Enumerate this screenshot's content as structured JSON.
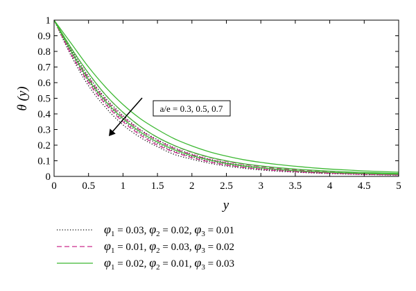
{
  "chart_data": {
    "type": "line",
    "xlabel": "y",
    "ylabel": "θ (y)",
    "xlim": [
      0,
      5
    ],
    "ylim": [
      0,
      1
    ],
    "x_ticks": [
      0,
      0.5,
      1,
      1.5,
      2,
      2.5,
      3,
      3.5,
      4,
      4.5,
      5
    ],
    "y_ticks": [
      0,
      0.1,
      0.2,
      0.3,
      0.4,
      0.5,
      0.6,
      0.7,
      0.8,
      0.9,
      1
    ],
    "x_tick_labels": [
      "0",
      "0.5",
      "1",
      "1.5",
      "2",
      "2.5",
      "3",
      "3.5",
      "4",
      "4.5",
      "5"
    ],
    "y_tick_labels": [
      "0",
      "0.1",
      "0.2",
      "0.3",
      "0.4",
      "0.5",
      "0.6",
      "0.7",
      "0.8",
      "0.9",
      "1"
    ],
    "grid": false,
    "annotation": {
      "text": "a/e = 0.3, 0.5, 0.7",
      "arrow_direction": "down-left"
    },
    "x": [
      0,
      0.25,
      0.5,
      0.75,
      1,
      1.25,
      1.5,
      1.75,
      2,
      2.25,
      2.5,
      2.75,
      3,
      3.25,
      3.5,
      3.75,
      4,
      4.25,
      4.5,
      4.75,
      5
    ],
    "series": [
      {
        "group": 0,
        "a_over_e": 0.3,
        "color": "#000000",
        "style": "dotted",
        "values": [
          1,
          0.77,
          0.58,
          0.44,
          0.33,
          0.25,
          0.19,
          0.14,
          0.11,
          0.085,
          0.066,
          0.052,
          0.041,
          0.033,
          0.027,
          0.022,
          0.018,
          0.015,
          0.012,
          0.01,
          0.008
        ]
      },
      {
        "group": 0,
        "a_over_e": 0.5,
        "color": "#000000",
        "style": "dotted",
        "values": [
          1,
          0.79,
          0.61,
          0.47,
          0.36,
          0.275,
          0.21,
          0.16,
          0.125,
          0.097,
          0.076,
          0.06,
          0.048,
          0.039,
          0.031,
          0.025,
          0.021,
          0.017,
          0.014,
          0.011,
          0.009
        ]
      },
      {
        "group": 0,
        "a_over_e": 0.7,
        "color": "#000000",
        "style": "dotted",
        "values": [
          1,
          0.81,
          0.64,
          0.5,
          0.39,
          0.3,
          0.235,
          0.182,
          0.142,
          0.111,
          0.088,
          0.07,
          0.056,
          0.045,
          0.036,
          0.029,
          0.024,
          0.02,
          0.016,
          0.013,
          0.011
        ]
      },
      {
        "group": 1,
        "a_over_e": 0.3,
        "color": "#cc2a8c",
        "style": "dashed",
        "values": [
          1,
          0.78,
          0.6,
          0.46,
          0.35,
          0.265,
          0.2,
          0.155,
          0.12,
          0.093,
          0.073,
          0.058,
          0.046,
          0.037,
          0.03,
          0.024,
          0.02,
          0.016,
          0.013,
          0.011,
          0.009
        ]
      },
      {
        "group": 1,
        "a_over_e": 0.5,
        "color": "#cc2a8c",
        "style": "dashed",
        "values": [
          1,
          0.8,
          0.63,
          0.49,
          0.38,
          0.295,
          0.23,
          0.178,
          0.139,
          0.109,
          0.086,
          0.068,
          0.055,
          0.044,
          0.036,
          0.029,
          0.024,
          0.019,
          0.016,
          0.013,
          0.011
        ]
      },
      {
        "group": 1,
        "a_over_e": 0.7,
        "color": "#cc2a8c",
        "style": "dashed",
        "values": [
          1,
          0.82,
          0.66,
          0.52,
          0.41,
          0.32,
          0.25,
          0.196,
          0.154,
          0.122,
          0.097,
          0.078,
          0.063,
          0.051,
          0.042,
          0.034,
          0.028,
          0.023,
          0.019,
          0.016,
          0.013
        ]
      },
      {
        "group": 2,
        "a_over_e": 0.3,
        "color": "#3cb832",
        "style": "solid",
        "values": [
          1,
          0.8,
          0.62,
          0.48,
          0.37,
          0.285,
          0.22,
          0.17,
          0.133,
          0.105,
          0.083,
          0.067,
          0.055,
          0.045,
          0.037,
          0.031,
          0.026,
          0.022,
          0.019,
          0.016,
          0.014
        ]
      },
      {
        "group": 2,
        "a_over_e": 0.5,
        "color": "#3cb832",
        "style": "solid",
        "values": [
          1,
          0.82,
          0.66,
          0.52,
          0.41,
          0.32,
          0.25,
          0.197,
          0.156,
          0.124,
          0.1,
          0.081,
          0.067,
          0.056,
          0.047,
          0.04,
          0.034,
          0.029,
          0.025,
          0.022,
          0.019
        ]
      },
      {
        "group": 2,
        "a_over_e": 0.7,
        "color": "#3cb832",
        "style": "solid",
        "values": [
          1,
          0.85,
          0.7,
          0.57,
          0.46,
          0.37,
          0.3,
          0.24,
          0.195,
          0.158,
          0.13,
          0.107,
          0.09,
          0.076,
          0.065,
          0.055,
          0.047,
          0.041,
          0.035,
          0.031,
          0.027
        ]
      }
    ],
    "legend": [
      {
        "color": "#000000",
        "style": "dotted",
        "phi1": "0.03",
        "phi2": "0.02",
        "phi3": "0.01"
      },
      {
        "color": "#cc2a8c",
        "style": "dashed",
        "phi1": "0.01",
        "phi2": "0.03",
        "phi3": "0.02"
      },
      {
        "color": "#3cb832",
        "style": "solid",
        "phi1": "0.02",
        "phi2": "0.01",
        "phi3": "0.03"
      }
    ],
    "legend_placement": "bottom-left"
  }
}
